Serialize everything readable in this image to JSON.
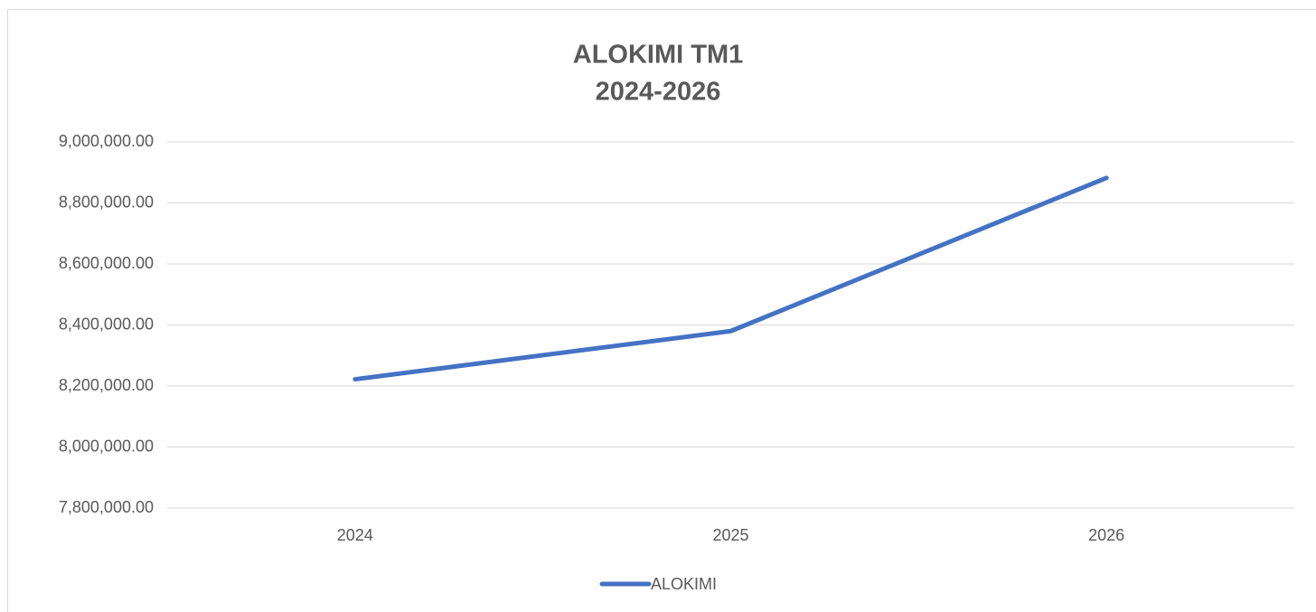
{
  "chart_data": {
    "type": "line",
    "title": "ALOKIMI TM1",
    "subtitle": "2024-2026",
    "categories": [
      "2024",
      "2025",
      "2026"
    ],
    "series": [
      {
        "name": "ALOKIMI",
        "color": "#4472c4",
        "values": [
          8222000,
          8380000,
          8882000
        ]
      }
    ],
    "ylim": [
      7800000,
      9000000
    ],
    "yticks": [
      {
        "value": 7800000,
        "label": "7,800,000.00"
      },
      {
        "value": 8000000,
        "label": "8,000,000.00"
      },
      {
        "value": 8200000,
        "label": "8,200,000.00"
      },
      {
        "value": 8400000,
        "label": "8,400,000.00"
      },
      {
        "value": 8600000,
        "label": "8,600,000.00"
      },
      {
        "value": 8800000,
        "label": "8,800,000.00"
      },
      {
        "value": 9000000,
        "label": "9,000,000.00"
      }
    ],
    "grid": true,
    "legend": "bottom"
  }
}
